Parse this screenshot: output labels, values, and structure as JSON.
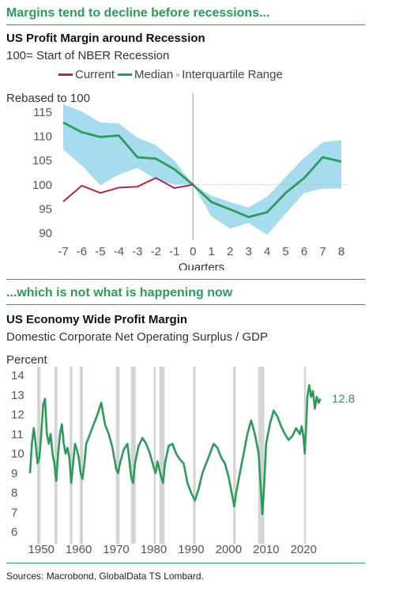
{
  "headline1": "Margins tend to decline before recessions...",
  "headline2": "...which is not what is happening now",
  "source": "Sources: Macrobond, GlobalData TS Lombard.",
  "colors": {
    "accent": "#2e9a5c",
    "current": "#b0274b",
    "median": "#2e9a5c",
    "band": "#a7dcee",
    "recession": "#d4d4d4"
  },
  "chart_data": [
    {
      "type": "line",
      "title": "US Profit Margin around Recession",
      "subtitle": "100= Start of NBER Recession",
      "ylabel": "Rebased to 100",
      "xlabel": "Quarters",
      "x": [
        -7,
        -6,
        -5,
        -4,
        -3,
        -2,
        -1,
        0,
        1,
        2,
        3,
        4,
        5,
        6,
        7,
        8
      ],
      "ylim": [
        88,
        117
      ],
      "yticks": [
        90,
        95,
        100,
        105,
        110,
        115
      ],
      "legend": [
        "Current",
        "Median",
        "Interquartile Range"
      ],
      "series": [
        {
          "name": "Current",
          "x": [
            -7,
            -6,
            -5,
            -4,
            -3,
            -2,
            -1,
            0
          ],
          "values": [
            96.5,
            99.8,
            98.3,
            99.4,
            99.6,
            101.4,
            99.3,
            100.0
          ]
        },
        {
          "name": "Median",
          "x": [
            -7,
            -6,
            -5,
            -4,
            -3,
            -2,
            -1,
            0,
            1,
            2,
            3,
            4,
            5,
            6,
            7,
            8
          ],
          "values": [
            112.9,
            110.9,
            109.9,
            110.2,
            105.7,
            105.4,
            103.2,
            100.0,
            96.4,
            94.9,
            93.3,
            94.3,
            98.3,
            101.4,
            105.7,
            104.8
          ]
        },
        {
          "name": "Interquartile Range",
          "x": [
            -7,
            -6,
            -5,
            -4,
            -3,
            -2,
            -1,
            0,
            1,
            2,
            3,
            4,
            5,
            6,
            7,
            8
          ],
          "upper": [
            116.7,
            115.2,
            112.9,
            112.7,
            109.8,
            108.2,
            105.0,
            100.0,
            97.7,
            96.4,
            95.3,
            97.5,
            101.6,
            105.6,
            108.8,
            109.3
          ],
          "lower": [
            107.3,
            104.0,
            99.9,
            102.1,
            103.5,
            101.1,
            100.0,
            100.0,
            93.4,
            90.9,
            92.1,
            89.6,
            94.0,
            98.3,
            99.2,
            99.2
          ]
        }
      ]
    },
    {
      "type": "line",
      "title": "US Economy Wide Profit Margin",
      "subtitle": "Domestic Corporate Net Operating Surplus / GDP",
      "ylabel": "Percent",
      "ylim": [
        6,
        14
      ],
      "yticks": [
        6,
        7,
        8,
        9,
        10,
        11,
        12,
        13,
        14
      ],
      "xticks": [
        1950,
        1960,
        1970,
        1980,
        1990,
        2000,
        2010,
        2020
      ],
      "xlim": [
        1947,
        2025
      ],
      "end_label": "12.8",
      "recessions": [
        [
          1948.9,
          1949.8
        ],
        [
          1953.5,
          1954.3
        ],
        [
          1957.6,
          1958.3
        ],
        [
          1960.3,
          1961.1
        ],
        [
          1969.9,
          1970.9
        ],
        [
          1973.9,
          1975.2
        ],
        [
          1980.0,
          1980.5
        ],
        [
          1981.5,
          1982.9
        ],
        [
          1990.5,
          1991.2
        ],
        [
          2001.2,
          2001.9
        ],
        [
          2007.9,
          2009.5
        ],
        [
          2020.1,
          2020.4
        ]
      ],
      "series": [
        {
          "name": "Profit margin",
          "x": [
            1947.0,
            1947.5,
            1948.0,
            1948.5,
            1949.0,
            1949.5,
            1950.0,
            1950.5,
            1951.0,
            1951.5,
            1952.0,
            1952.5,
            1953.0,
            1953.5,
            1954.0,
            1954.5,
            1955.0,
            1955.5,
            1956.0,
            1956.5,
            1957.0,
            1957.5,
            1958.0,
            1958.5,
            1959.0,
            1959.5,
            1960.0,
            1960.5,
            1961.0,
            1961.5,
            1962.0,
            1963.0,
            1964.0,
            1965.0,
            1966.0,
            1967.0,
            1968.0,
            1969.0,
            1970.0,
            1970.5,
            1971.0,
            1972.0,
            1973.0,
            1974.0,
            1974.5,
            1975.0,
            1976.0,
            1977.0,
            1978.0,
            1979.0,
            1980.0,
            1980.5,
            1981.0,
            1982.0,
            1982.5,
            1983.0,
            1984.0,
            1985.0,
            1986.0,
            1987.0,
            1988.0,
            1989.0,
            1990.0,
            1991.0,
            1992.0,
            1993.0,
            1994.0,
            1995.0,
            1996.0,
            1997.0,
            1998.0,
            1999.0,
            2000.0,
            2001.0,
            2001.5,
            2002.0,
            2003.0,
            2004.0,
            2005.0,
            2006.0,
            2007.0,
            2008.0,
            2009.0,
            2009.5,
            2010.0,
            2011.0,
            2012.0,
            2013.0,
            2014.0,
            2015.0,
            2016.0,
            2017.0,
            2018.0,
            2019.0,
            2019.5,
            2020.0,
            2020.3,
            2020.7,
            2021.0,
            2021.5,
            2022.0,
            2022.5,
            2023.0,
            2023.5,
            2024.0,
            2024.5
          ],
          "values": [
            9.0,
            10.5,
            11.3,
            10.5,
            9.5,
            9.8,
            11.0,
            12.5,
            12.8,
            11.0,
            10.5,
            11.0,
            10.0,
            9.5,
            8.6,
            10.0,
            11.0,
            11.5,
            10.5,
            10.0,
            10.3,
            9.8,
            8.5,
            9.5,
            10.5,
            10.2,
            9.8,
            9.0,
            8.7,
            9.5,
            10.5,
            11.0,
            11.5,
            12.0,
            12.6,
            11.5,
            11.0,
            10.3,
            9.2,
            9.0,
            9.5,
            10.2,
            10.5,
            8.8,
            8.5,
            9.5,
            10.4,
            10.8,
            10.5,
            10.0,
            9.3,
            9.0,
            9.6,
            8.8,
            8.5,
            9.5,
            10.4,
            10.5,
            10.0,
            9.7,
            9.5,
            8.5,
            8.0,
            7.6,
            8.2,
            9.0,
            9.5,
            10.0,
            10.5,
            10.3,
            9.8,
            9.5,
            8.8,
            7.8,
            7.3,
            8.0,
            9.0,
            10.0,
            11.0,
            11.7,
            11.0,
            10.0,
            6.9,
            8.5,
            10.5,
            11.5,
            12.2,
            11.9,
            11.4,
            11.0,
            10.7,
            10.9,
            11.3,
            11.0,
            11.4,
            10.8,
            10.0,
            11.5,
            12.9,
            13.5,
            12.9,
            13.2,
            12.3,
            12.9,
            12.6,
            12.8
          ]
        }
      ]
    }
  ]
}
